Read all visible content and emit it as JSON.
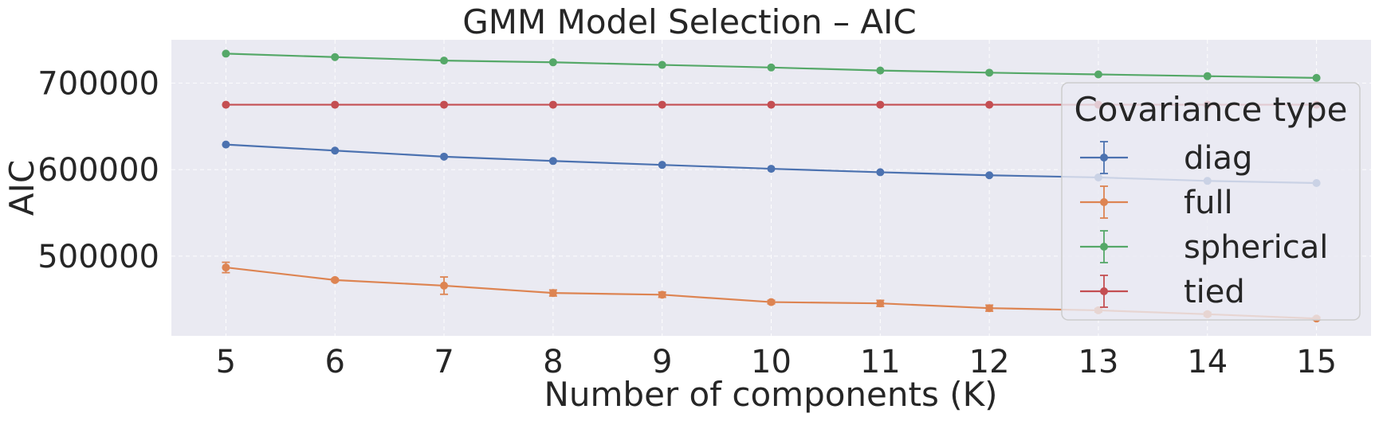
{
  "chart_data": {
    "type": "line",
    "title": "GMM Model Selection – AIC",
    "xlabel": "Number of components (K)",
    "ylabel": "AIC",
    "x": [
      5,
      6,
      7,
      8,
      9,
      10,
      11,
      12,
      13,
      14,
      15
    ],
    "xlim": [
      4.5,
      15.5
    ],
    "ylim": [
      408000,
      750000
    ],
    "yticks": [
      500000,
      600000,
      700000
    ],
    "ytick_labels": [
      "500000",
      "600000",
      "700000"
    ],
    "xtick_labels": [
      "5",
      "6",
      "7",
      "8",
      "9",
      "10",
      "11",
      "12",
      "13",
      "14",
      "15"
    ],
    "grid": true,
    "background": "#eaeaf2",
    "legend": {
      "title": "Covariance type",
      "placement": "right"
    },
    "series": [
      {
        "name": "diag",
        "color": "#4c72b0",
        "values": [
          629000,
          622000,
          615000,
          610000,
          605500,
          601000,
          597000,
          593500,
          591000,
          587000,
          584500
        ],
        "errors": [
          0,
          0,
          0,
          0,
          0,
          0,
          0,
          0,
          0,
          0,
          0
        ]
      },
      {
        "name": "full",
        "color": "#dd8452",
        "values": [
          487000,
          472500,
          466000,
          457500,
          455500,
          447000,
          445500,
          440000,
          437500,
          433000,
          428000
        ],
        "errors": [
          6000,
          1500,
          10000,
          3500,
          3000,
          2000,
          3500,
          3500,
          2000,
          2000,
          1500
        ]
      },
      {
        "name": "spherical",
        "color": "#55a868",
        "values": [
          734000,
          730000,
          726000,
          724000,
          721000,
          718000,
          714500,
          712000,
          710000,
          708000,
          706000
        ],
        "errors": [
          0,
          0,
          0,
          0,
          0,
          0,
          0,
          0,
          0,
          0,
          0
        ]
      },
      {
        "name": "tied",
        "color": "#c44e52",
        "values": [
          675000,
          675000,
          675000,
          675000,
          675000,
          675000,
          675000,
          675000,
          675000,
          675000,
          675000
        ],
        "errors": [
          0,
          0,
          0,
          0,
          0,
          0,
          0,
          0,
          0,
          0,
          0
        ]
      }
    ]
  }
}
